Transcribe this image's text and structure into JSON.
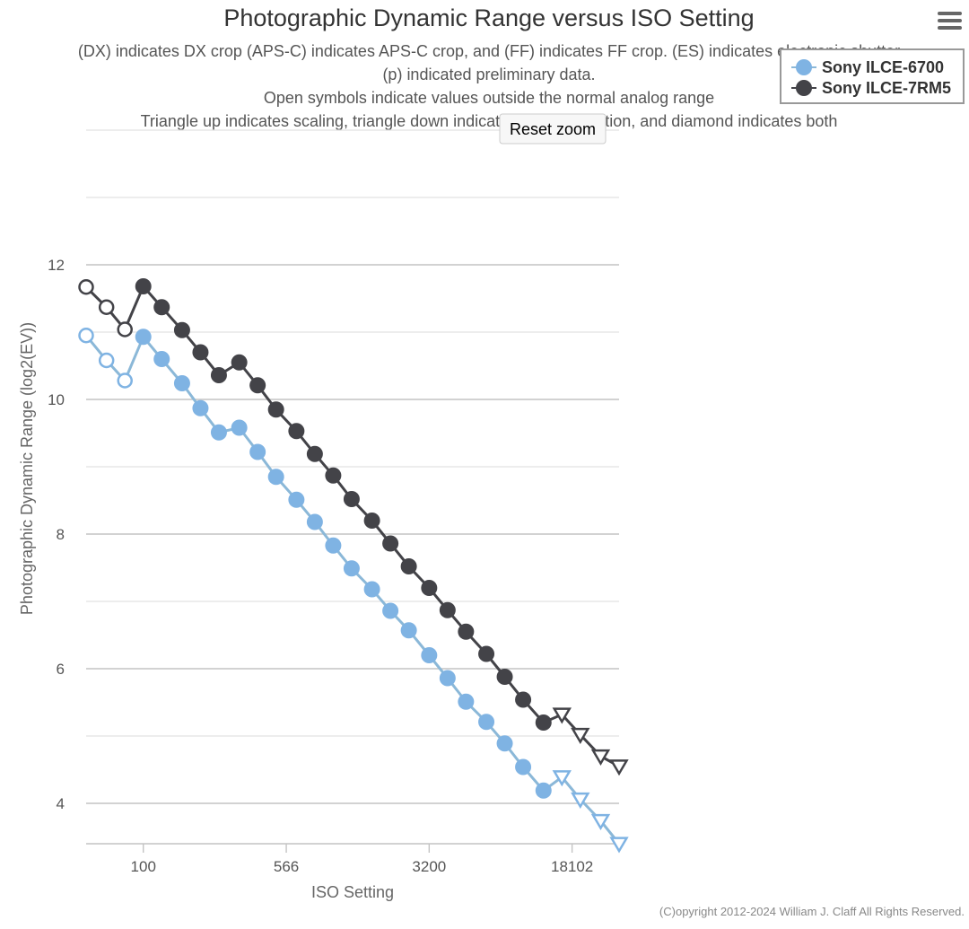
{
  "chart_data": {
    "type": "line",
    "title": "Photographic Dynamic Range versus ISO Setting",
    "subtitle_lines": [
      "(DX) indicates DX crop (APS-C) indicates APS-C crop, and (FF) indicates FF crop. (ES) indicates electronic shutter",
      "(p) indicated preliminary data.",
      "Open symbols indicate values outside the normal analog range",
      "Triangle up indicates scaling, triangle down indicates noise reduction, and diamond indicates both"
    ],
    "xlabel": "ISO Setting",
    "ylabel": "Photographic Dynamic Range (log2(EV))",
    "x_scale": "log2",
    "x_ticks": [
      100,
      566,
      3200,
      18102
    ],
    "x_tick_labels": [
      "100",
      "566",
      "3200",
      "18102"
    ],
    "xlim": [
      50,
      32000
    ],
    "y_ticks": [
      4,
      6,
      8,
      10,
      12
    ],
    "ylim": [
      3.4,
      14.0
    ],
    "grid": true,
    "legend_position": "top-right",
    "series": [
      {
        "name": "Sony ILCE-6700",
        "color": "#7fb3e3",
        "line_color": "#8bb8d8",
        "points": [
          {
            "x": 50,
            "y": 10.95,
            "marker": "open-circle"
          },
          {
            "x": 64,
            "y": 10.58,
            "marker": "open-circle"
          },
          {
            "x": 80,
            "y": 10.28,
            "marker": "open-circle"
          },
          {
            "x": 100,
            "y": 10.93,
            "marker": "circle"
          },
          {
            "x": 125,
            "y": 10.6,
            "marker": "circle"
          },
          {
            "x": 160,
            "y": 10.24,
            "marker": "circle"
          },
          {
            "x": 200,
            "y": 9.87,
            "marker": "circle"
          },
          {
            "x": 250,
            "y": 9.51,
            "marker": "circle"
          },
          {
            "x": 320,
            "y": 9.58,
            "marker": "circle"
          },
          {
            "x": 400,
            "y": 9.22,
            "marker": "circle"
          },
          {
            "x": 500,
            "y": 8.85,
            "marker": "circle"
          },
          {
            "x": 640,
            "y": 8.51,
            "marker": "circle"
          },
          {
            "x": 800,
            "y": 8.18,
            "marker": "circle"
          },
          {
            "x": 1000,
            "y": 7.83,
            "marker": "circle"
          },
          {
            "x": 1250,
            "y": 7.49,
            "marker": "circle"
          },
          {
            "x": 1600,
            "y": 7.18,
            "marker": "circle"
          },
          {
            "x": 2000,
            "y": 6.86,
            "marker": "circle"
          },
          {
            "x": 2500,
            "y": 6.57,
            "marker": "circle"
          },
          {
            "x": 3200,
            "y": 6.2,
            "marker": "circle"
          },
          {
            "x": 4000,
            "y": 5.86,
            "marker": "circle"
          },
          {
            "x": 5000,
            "y": 5.51,
            "marker": "circle"
          },
          {
            "x": 6400,
            "y": 5.21,
            "marker": "circle"
          },
          {
            "x": 8000,
            "y": 4.89,
            "marker": "circle"
          },
          {
            "x": 10000,
            "y": 4.54,
            "marker": "circle"
          },
          {
            "x": 12800,
            "y": 4.19,
            "marker": "circle"
          },
          {
            "x": 16000,
            "y": 4.39,
            "marker": "triangle-down"
          },
          {
            "x": 20000,
            "y": 4.06,
            "marker": "triangle-down"
          },
          {
            "x": 25600,
            "y": 3.74,
            "marker": "triangle-down"
          },
          {
            "x": 32000,
            "y": 3.4,
            "marker": "triangle-down"
          }
        ]
      },
      {
        "name": "Sony ILCE-7RM5",
        "color": "#434348",
        "line_color": "#434348",
        "points": [
          {
            "x": 50,
            "y": 11.67,
            "marker": "open-circle"
          },
          {
            "x": 64,
            "y": 11.37,
            "marker": "open-circle"
          },
          {
            "x": 80,
            "y": 11.04,
            "marker": "open-circle"
          },
          {
            "x": 100,
            "y": 11.68,
            "marker": "circle"
          },
          {
            "x": 125,
            "y": 11.37,
            "marker": "circle"
          },
          {
            "x": 160,
            "y": 11.03,
            "marker": "circle"
          },
          {
            "x": 200,
            "y": 10.7,
            "marker": "circle"
          },
          {
            "x": 250,
            "y": 10.36,
            "marker": "circle"
          },
          {
            "x": 320,
            "y": 10.55,
            "marker": "circle"
          },
          {
            "x": 400,
            "y": 10.21,
            "marker": "circle"
          },
          {
            "x": 500,
            "y": 9.85,
            "marker": "circle"
          },
          {
            "x": 640,
            "y": 9.53,
            "marker": "circle"
          },
          {
            "x": 800,
            "y": 9.19,
            "marker": "circle"
          },
          {
            "x": 1000,
            "y": 8.87,
            "marker": "circle"
          },
          {
            "x": 1250,
            "y": 8.52,
            "marker": "circle"
          },
          {
            "x": 1600,
            "y": 8.2,
            "marker": "circle"
          },
          {
            "x": 2000,
            "y": 7.86,
            "marker": "circle"
          },
          {
            "x": 2500,
            "y": 7.52,
            "marker": "circle"
          },
          {
            "x": 3200,
            "y": 7.2,
            "marker": "circle"
          },
          {
            "x": 4000,
            "y": 6.87,
            "marker": "circle"
          },
          {
            "x": 5000,
            "y": 6.55,
            "marker": "circle"
          },
          {
            "x": 6400,
            "y": 6.22,
            "marker": "circle"
          },
          {
            "x": 8000,
            "y": 5.88,
            "marker": "circle"
          },
          {
            "x": 10000,
            "y": 5.54,
            "marker": "circle"
          },
          {
            "x": 12800,
            "y": 5.2,
            "marker": "circle"
          },
          {
            "x": 16000,
            "y": 5.32,
            "marker": "triangle-down"
          },
          {
            "x": 20000,
            "y": 5.02,
            "marker": "triangle-down"
          },
          {
            "x": 25600,
            "y": 4.7,
            "marker": "triangle-down"
          },
          {
            "x": 32000,
            "y": 4.55,
            "marker": "triangle-down"
          }
        ]
      }
    ]
  },
  "ui": {
    "reset_zoom_label": "Reset zoom",
    "menu_icon": "hamburger-menu-icon",
    "credits": "(C)opyright 2012-2024 William J. Claff All Rights Reserved."
  }
}
